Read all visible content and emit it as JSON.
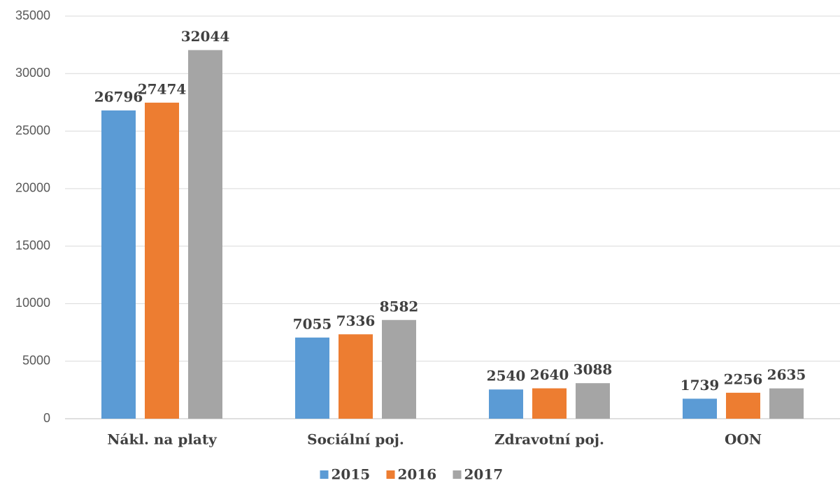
{
  "chart_data": {
    "type": "bar",
    "categories": [
      "Nákl. na platy",
      "Sociální poj.",
      "Zdravotní poj.",
      "OON"
    ],
    "series": [
      {
        "name": "2015",
        "color": "#5b9bd5",
        "values": [
          26796,
          7055,
          2540,
          1739
        ]
      },
      {
        "name": "2016",
        "color": "#ed7d31",
        "values": [
          27474,
          7336,
          2640,
          2256
        ]
      },
      {
        "name": "2017",
        "color": "#a5a5a5",
        "values": [
          32044,
          8582,
          3088,
          2635
        ]
      }
    ],
    "ylim": [
      0,
      35000
    ],
    "yticks": [
      0,
      5000,
      10000,
      15000,
      20000,
      25000,
      30000,
      35000
    ],
    "grid": true,
    "legend": "bottom"
  }
}
